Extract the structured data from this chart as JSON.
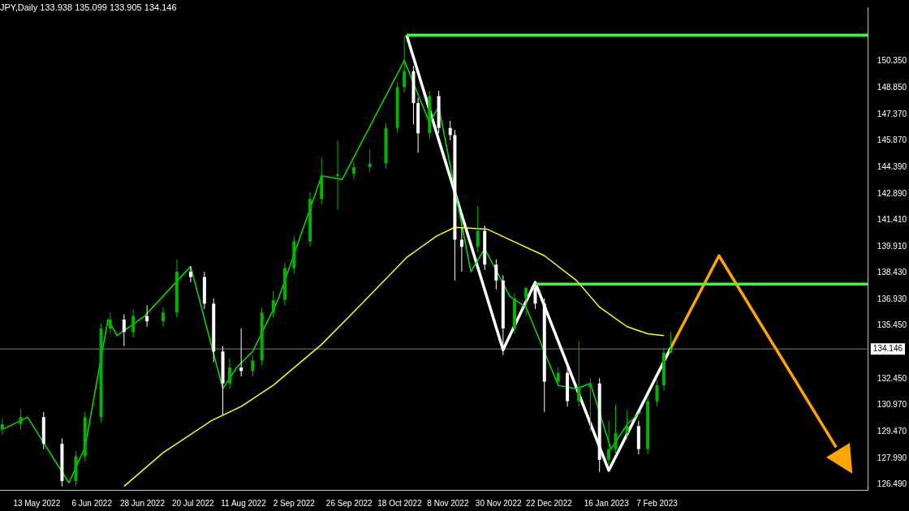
{
  "chart_data": {
    "type": "candlestick",
    "title": "JPY,Daily 133.938 135.099 133.905 134.146",
    "x": [
      "2022-04-28",
      "2022-05-06",
      "2022-05-16",
      "2022-05-24",
      "2022-05-30",
      "2022-06-03",
      "2022-06-10",
      "2022-06-14",
      "2022-06-20",
      "2022-06-24",
      "2022-06-30",
      "2022-07-07",
      "2022-07-13",
      "2022-07-19",
      "2022-07-25",
      "2022-07-29",
      "2022-08-02",
      "2022-08-05",
      "2022-08-10",
      "2022-08-15",
      "2022-08-19",
      "2022-08-24",
      "2022-08-29",
      "2022-09-02",
      "2022-09-09",
      "2022-09-14",
      "2022-09-21",
      "2022-09-28",
      "2022-10-05",
      "2022-10-12",
      "2022-10-17",
      "2022-10-20",
      "2022-10-24",
      "2022-10-26",
      "2022-10-31",
      "2022-11-04",
      "2022-11-09",
      "2022-11-11",
      "2022-11-14",
      "2022-11-21",
      "2022-11-24",
      "2022-11-29",
      "2022-12-02",
      "2022-12-07",
      "2022-12-12",
      "2022-12-16",
      "2022-12-20",
      "2022-12-26",
      "2022-12-30",
      "2023-01-04",
      "2023-01-09",
      "2023-01-13",
      "2023-01-17",
      "2023-01-20",
      "2023-01-25",
      "2023-01-30",
      "2023-02-03",
      "2023-02-07",
      "2023-02-10",
      "2023-02-13"
    ],
    "ohlc": [
      [
        129.6,
        130.2,
        129.3,
        129.9
      ],
      [
        129.9,
        130.8,
        129.6,
        130.3
      ],
      [
        130.3,
        130.6,
        128.5,
        128.8
      ],
      [
        128.8,
        129.1,
        126.4,
        126.7
      ],
      [
        126.7,
        128.4,
        126.4,
        128.1
      ],
      [
        128.1,
        130.6,
        127.8,
        130.3
      ],
      [
        130.3,
        135.6,
        130.0,
        135.3
      ],
      [
        135.3,
        136.2,
        135.0,
        135.8
      ],
      [
        135.8,
        136.1,
        134.3,
        135.1
      ],
      [
        135.1,
        136.4,
        134.8,
        136.0
      ],
      [
        136.0,
        136.6,
        135.4,
        135.7
      ],
      [
        135.7,
        136.5,
        135.4,
        136.2
      ],
      [
        136.2,
        139.2,
        135.9,
        138.5
      ],
      [
        138.5,
        138.8,
        137.9,
        138.2
      ],
      [
        138.2,
        138.5,
        136.4,
        136.7
      ],
      [
        136.7,
        137.0,
        133.4,
        134.0
      ],
      [
        134.0,
        134.3,
        130.4,
        132.2
      ],
      [
        132.2,
        133.6,
        131.9,
        133.1
      ],
      [
        133.1,
        135.3,
        132.6,
        132.9
      ],
      [
        132.9,
        133.8,
        132.6,
        133.5
      ],
      [
        133.5,
        136.5,
        133.2,
        136.2
      ],
      [
        136.2,
        137.4,
        135.9,
        136.9
      ],
      [
        136.9,
        139.0,
        136.6,
        138.7
      ],
      [
        138.7,
        140.5,
        138.4,
        140.2
      ],
      [
        140.2,
        143.0,
        139.9,
        142.6
      ],
      [
        142.6,
        144.9,
        142.3,
        143.9
      ],
      [
        143.9,
        145.9,
        142.0,
        144.0
      ],
      [
        144.0,
        144.7,
        143.7,
        144.4
      ],
      [
        144.4,
        145.4,
        144.1,
        144.6
      ],
      [
        144.6,
        146.9,
        144.3,
        146.6
      ],
      [
        146.6,
        149.2,
        146.3,
        148.9
      ],
      [
        148.9,
        151.8,
        148.6,
        149.8
      ],
      [
        149.8,
        150.1,
        146.8,
        148.0
      ],
      [
        148.0,
        148.3,
        145.2,
        146.3
      ],
      [
        146.3,
        148.7,
        146.0,
        148.4
      ],
      [
        148.4,
        148.7,
        146.3,
        146.6
      ],
      [
        146.6,
        147.0,
        145.9,
        146.2
      ],
      [
        146.2,
        146.5,
        138.0,
        140.3
      ],
      [
        140.3,
        141.0,
        138.5,
        139.9
      ],
      [
        139.9,
        142.2,
        139.6,
        140.8
      ],
      [
        140.8,
        141.1,
        138.6,
        138.9
      ],
      [
        138.9,
        139.2,
        137.5,
        138.0
      ],
      [
        138.0,
        138.3,
        133.8,
        135.3
      ],
      [
        135.3,
        137.3,
        135.0,
        137.0
      ],
      [
        137.0,
        137.6,
        136.0,
        137.6
      ],
      [
        137.6,
        137.9,
        136.4,
        136.7
      ],
      [
        136.7,
        137.0,
        130.6,
        132.3
      ],
      [
        132.3,
        133.1,
        132.0,
        132.8
      ],
      [
        132.8,
        133.1,
        130.9,
        131.2
      ],
      [
        131.2,
        134.6,
        130.9,
        132.0
      ],
      [
        132.0,
        132.5,
        129.5,
        132.2
      ],
      [
        132.2,
        132.5,
        127.2,
        127.9
      ],
      [
        127.9,
        130.1,
        127.6,
        128.5
      ],
      [
        128.5,
        131.0,
        128.2,
        129.4
      ],
      [
        129.4,
        130.7,
        129.1,
        129.8
      ],
      [
        129.8,
        130.1,
        128.2,
        128.5
      ],
      [
        128.5,
        131.5,
        128.2,
        131.2
      ],
      [
        131.2,
        132.4,
        130.9,
        132.1
      ],
      [
        132.1,
        134.2,
        131.8,
        133.938
      ],
      [
        133.938,
        135.099,
        133.905,
        134.146
      ]
    ],
    "colors": [
      "#00b400",
      "#00b400",
      "#ffffff",
      "#ffffff",
      "#00b400",
      "#00b400",
      "#00b400",
      "#00b400",
      "#ffffff",
      "#00b400",
      "#ffffff",
      "#00b400",
      "#00b400",
      "#ffffff",
      "#ffffff",
      "#ffffff",
      "#ffffff",
      "#00b400",
      "#ffffff",
      "#00b400",
      "#00b400",
      "#00b400",
      "#00b400",
      "#00b400",
      "#00b400",
      "#00b400",
      "#00b400",
      "#00b400",
      "#00b400",
      "#00b400",
      "#00b400",
      "#00b400",
      "#ffffff",
      "#ffffff",
      "#00b400",
      "#ffffff",
      "#ffffff",
      "#ffffff",
      "#ffffff",
      "#00b400",
      "#ffffff",
      "#ffffff",
      "#ffffff",
      "#00b400",
      "#00b400",
      "#ffffff",
      "#ffffff",
      "#00b400",
      "#ffffff",
      "#00b400",
      "#00b400",
      "#ffffff",
      "#00b400",
      "#00b400",
      "#00b400",
      "#ffffff",
      "#00b400",
      "#00b400",
      "#00b400",
      "#00b400"
    ],
    "series": [
      {
        "type": "line",
        "color": "#ffff00",
        "x": [
          "2022-06-20",
          "2022-07-07",
          "2022-07-28",
          "2022-08-10",
          "2022-08-24",
          "2022-09-14",
          "2022-09-30",
          "2022-10-21",
          "2022-11-03",
          "2022-11-11",
          "2022-11-25",
          "2022-12-05",
          "2022-12-20",
          "2023-01-03",
          "2023-01-13",
          "2023-01-25",
          "2023-02-03",
          "2023-02-10"
        ],
        "values": [
          126.4,
          128.3,
          130.1,
          130.9,
          132.1,
          134.4,
          136.5,
          139.3,
          140.5,
          141.0,
          140.9,
          140.3,
          139.4,
          138.0,
          136.5,
          135.4,
          135.0,
          134.9
        ]
      },
      {
        "type": "line",
        "color": "#00e000",
        "x": [
          "2022-04-28",
          "2022-05-09",
          "2022-05-27",
          "2022-06-03",
          "2022-06-13",
          "2022-06-17",
          "2022-06-29",
          "2022-07-19",
          "2022-08-02",
          "2022-08-08",
          "2022-08-15",
          "2022-08-26",
          "2022-09-14",
          "2022-09-23",
          "2022-10-20",
          "2022-10-31",
          "2022-11-04",
          "2022-11-18",
          "2022-11-24",
          "2022-12-05",
          "2022-12-12",
          "2022-12-26",
          "2023-01-03",
          "2023-01-09",
          "2023-01-18",
          "2023-01-25",
          "2023-01-31"
        ],
        "values": [
          129.6,
          130.3,
          126.6,
          128.6,
          135.8,
          134.9,
          136.0,
          138.8,
          131.9,
          133.1,
          134.0,
          136.9,
          143.9,
          143.7,
          150.4,
          146.9,
          147.8,
          138.5,
          139.8,
          137.1,
          136.5,
          132.1,
          131.9,
          132.2,
          128.5,
          129.9,
          130.6
        ]
      },
      {
        "type": "line",
        "color": "#33ff33",
        "x": [
          "2022-10-21",
          "2023-05-10"
        ],
        "values": [
          151.84,
          151.84
        ]
      },
      {
        "type": "line",
        "color": "#33ff33",
        "x": [
          "2022-12-16",
          "2023-05-10"
        ],
        "values": [
          137.8,
          137.8
        ]
      },
      {
        "type": "line",
        "color": "#ffffff",
        "x": [
          "2022-10-21",
          "2022-12-02",
          "2022-12-16",
          "2023-01-17",
          "2023-02-13"
        ],
        "values": [
          151.84,
          134.1,
          137.9,
          127.3,
          134.2
        ]
      },
      {
        "type": "line",
        "color": "#ffa500",
        "x": [
          "2023-02-13",
          "2023-03-06",
          "2023-04-26"
        ],
        "values": [
          134.2,
          139.4,
          128.6
        ]
      }
    ],
    "ref_lines": [
      {
        "axis": "y",
        "value": 134.146,
        "label": "134.146",
        "color": "#808080"
      }
    ],
    "xlim": [
      "2022-04-27",
      "2023-05-10"
    ],
    "xticks": [
      {
        "value": "2022-05-13",
        "label": "13 May 2022"
      },
      {
        "value": "2022-06-06",
        "label": "6 Jun 2022"
      },
      {
        "value": "2022-06-28",
        "label": "28 Jun 2022"
      },
      {
        "value": "2022-07-20",
        "label": "20 Jul 2022"
      },
      {
        "value": "2022-08-11",
        "label": "11 Aug 2022"
      },
      {
        "value": "2022-09-02",
        "label": "2 Sep 2022"
      },
      {
        "value": "2022-09-26",
        "label": "26 Sep 2022"
      },
      {
        "value": "2022-10-18",
        "label": "18 Oct 2022"
      },
      {
        "value": "2022-11-08",
        "label": "8 Nov 2022"
      },
      {
        "value": "2022-11-30",
        "label": "30 Nov 2022"
      },
      {
        "value": "2022-12-22",
        "label": "22 Dec 2022"
      },
      {
        "value": "2023-01-16",
        "label": "16 Jan 2023"
      },
      {
        "value": "2023-02-07",
        "label": "7 Feb 2023"
      }
    ],
    "ylim": [
      126.2,
      153.4
    ],
    "yticks": [
      {
        "value": 150.35,
        "label": "150.350"
      },
      {
        "value": 148.85,
        "label": "148.850"
      },
      {
        "value": 147.37,
        "label": "147.370"
      },
      {
        "value": 145.87,
        "label": "145.870"
      },
      {
        "value": 144.39,
        "label": "144.390"
      },
      {
        "value": 142.89,
        "label": "142.890"
      },
      {
        "value": 141.41,
        "label": "141.410"
      },
      {
        "value": 139.91,
        "label": "139.910"
      },
      {
        "value": 138.43,
        "label": "138.430"
      },
      {
        "value": 136.93,
        "label": "136.930"
      },
      {
        "value": 135.45,
        "label": "135.450"
      },
      {
        "value": 132.45,
        "label": "132.450"
      },
      {
        "value": 130.97,
        "label": "130.970"
      },
      {
        "value": 129.47,
        "label": "129.470"
      },
      {
        "value": 127.99,
        "label": "127.990"
      },
      {
        "value": 126.49,
        "label": "126.490"
      }
    ],
    "grid": false,
    "legend": false
  }
}
